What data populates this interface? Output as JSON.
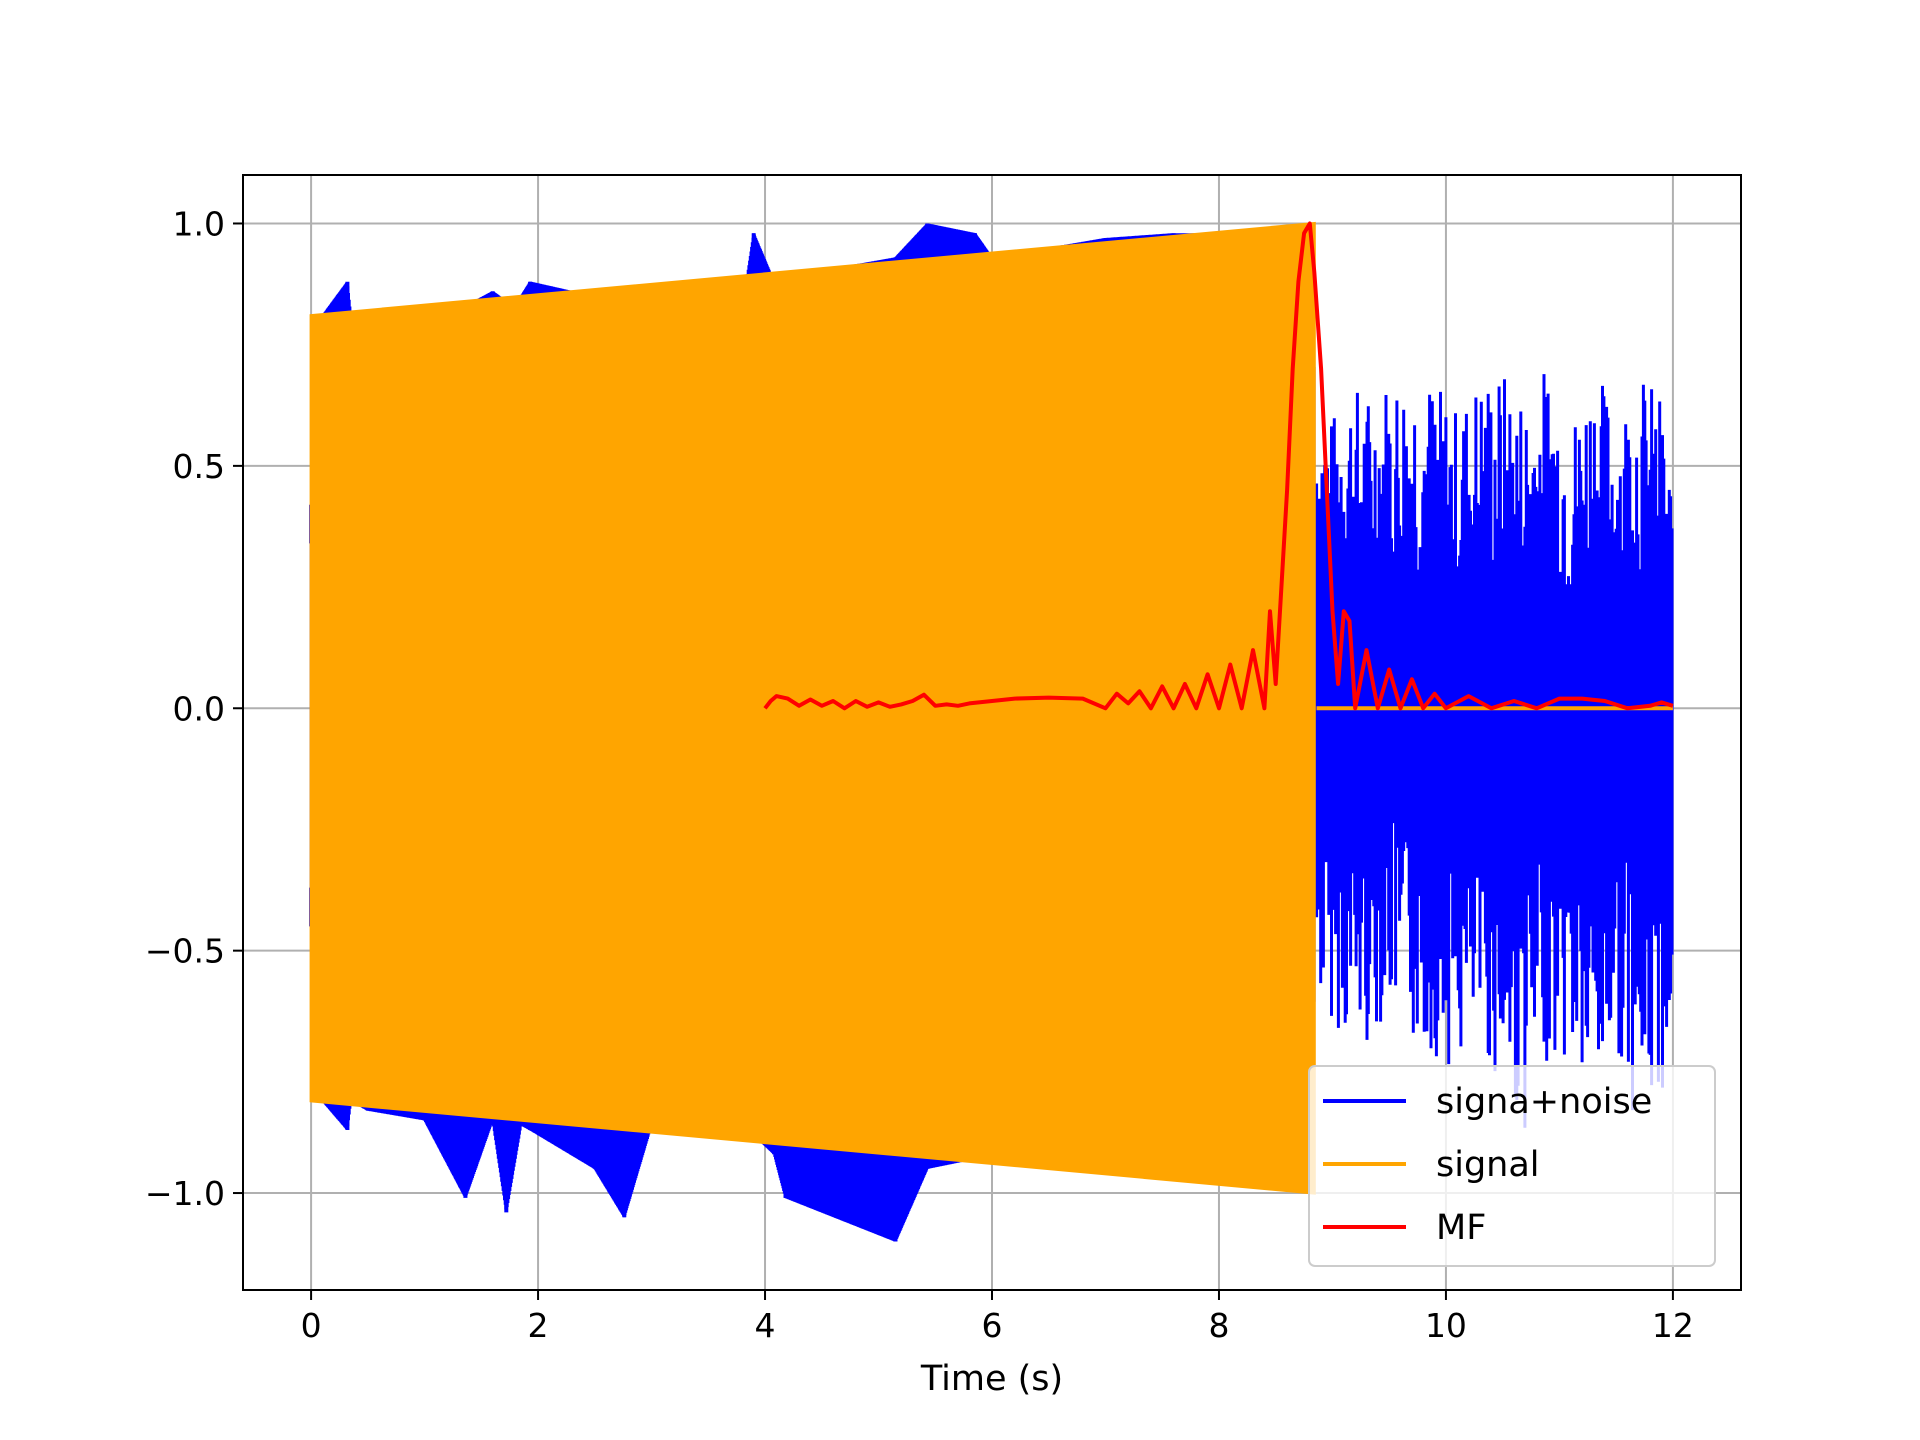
{
  "chart_data": {
    "type": "line",
    "title": "",
    "xlabel": "Time (s)",
    "ylabel": "",
    "xlim": [
      -0.6,
      12.6
    ],
    "ylim": [
      -1.2,
      1.1
    ],
    "x_ticks": [
      0,
      2,
      4,
      6,
      8,
      10,
      12
    ],
    "x_tick_labels": [
      "0",
      "2",
      "4",
      "6",
      "8",
      "10",
      "12"
    ],
    "y_ticks": [
      -1.0,
      -0.5,
      0.0,
      0.5,
      1.0
    ],
    "y_tick_labels": [
      "−1.0",
      "−0.5",
      "0.0",
      "0.5",
      "1.0"
    ],
    "grid": true,
    "legend_position": "lower right",
    "series": [
      {
        "name": "signa+noise",
        "color": "#0000ff",
        "x": [
          0,
          0.1,
          0.32,
          0.35,
          0.5,
          1.0,
          1.36,
          1.6,
          1.72,
          1.85,
          1.93,
          2.5,
          2.76,
          3.0,
          3.83,
          3.9,
          4.08,
          4.18,
          5.15,
          5.43,
          5.85,
          6.0,
          7.0,
          7.6,
          8.0,
          8.85,
          9.0,
          9.1,
          9.3,
          9.5,
          9.7,
          9.9,
          10.1,
          10.3,
          10.5,
          10.7,
          10.9,
          11.1,
          11.3,
          11.5,
          11.7,
          11.9,
          12.0
        ],
        "upper": [
          0.42,
          0.81,
          0.88,
          0.81,
          0.82,
          0.83,
          0.83,
          0.86,
          0.84,
          0.85,
          0.88,
          0.85,
          0.86,
          0.86,
          0.87,
          0.98,
          0.88,
          0.89,
          0.93,
          1.0,
          0.98,
          0.93,
          0.97,
          0.98,
          0.98,
          0.7,
          0.6,
          0.7,
          0.65,
          0.7,
          0.72,
          0.68,
          0.62,
          0.7,
          0.7,
          0.65,
          0.72,
          0.6,
          0.72,
          0.62,
          0.7,
          0.65,
          0.45
        ],
        "lower": [
          -0.45,
          -0.81,
          -0.87,
          -0.81,
          -0.83,
          -0.85,
          -1.01,
          -0.85,
          -1.04,
          -0.86,
          -0.87,
          -0.95,
          -1.05,
          -0.86,
          -0.87,
          -0.88,
          -0.92,
          -1.01,
          -1.1,
          -0.95,
          -0.93,
          -0.93,
          -0.95,
          -0.97,
          -0.97,
          -0.6,
          -0.65,
          -0.68,
          -0.7,
          -0.62,
          -0.7,
          -0.72,
          -0.75,
          -0.7,
          -0.8,
          -0.88,
          -0.72,
          -0.75,
          -0.85,
          -0.7,
          -0.88,
          -0.8,
          -0.68
        ]
      },
      {
        "name": "signal",
        "color": "#ffa500",
        "x": [
          0,
          8.84,
          12.0
        ],
        "upper": [
          0.81,
          1.0,
          0.0
        ],
        "lower": [
          -0.81,
          -1.0,
          0.0
        ],
        "note_value_after_end": 0.0
      },
      {
        "name": "MF",
        "color": "#ff0000",
        "x": [
          4.0,
          4.05,
          4.1,
          4.2,
          4.3,
          4.4,
          4.5,
          4.6,
          4.7,
          4.8,
          4.9,
          5.0,
          5.1,
          5.2,
          5.3,
          5.4,
          5.5,
          5.6,
          5.7,
          5.8,
          6.0,
          6.2,
          6.5,
          6.8,
          7.0,
          7.1,
          7.2,
          7.3,
          7.4,
          7.5,
          7.6,
          7.7,
          7.8,
          7.9,
          8.0,
          8.1,
          8.2,
          8.3,
          8.4,
          8.45,
          8.5,
          8.55,
          8.6,
          8.65,
          8.7,
          8.75,
          8.8,
          8.84,
          8.9,
          8.95,
          9.0,
          9.05,
          9.1,
          9.15,
          9.2,
          9.3,
          9.4,
          9.5,
          9.6,
          9.7,
          9.8,
          9.9,
          10.0,
          10.2,
          10.4,
          10.6,
          10.8,
          11.0,
          11.2,
          11.4,
          11.6,
          11.8,
          11.9,
          12.0
        ],
        "y": [
          0.0,
          0.015,
          0.025,
          0.02,
          0.005,
          0.018,
          0.005,
          0.015,
          0.0,
          0.015,
          0.003,
          0.012,
          0.003,
          0.008,
          0.015,
          0.028,
          0.005,
          0.008,
          0.005,
          0.01,
          0.015,
          0.02,
          0.022,
          0.02,
          0.0,
          0.03,
          0.01,
          0.035,
          0.0,
          0.045,
          0.0,
          0.05,
          0.0,
          0.07,
          0.0,
          0.09,
          0.0,
          0.12,
          0.0,
          0.2,
          0.05,
          0.25,
          0.45,
          0.7,
          0.88,
          0.98,
          1.0,
          0.9,
          0.7,
          0.45,
          0.2,
          0.05,
          0.2,
          0.18,
          0.0,
          0.12,
          0.0,
          0.08,
          0.0,
          0.06,
          0.0,
          0.03,
          0.0,
          0.025,
          0.0,
          0.015,
          0.0,
          0.02,
          0.02,
          0.015,
          0.0,
          0.005,
          0.012,
          0.005
        ]
      }
    ]
  }
}
